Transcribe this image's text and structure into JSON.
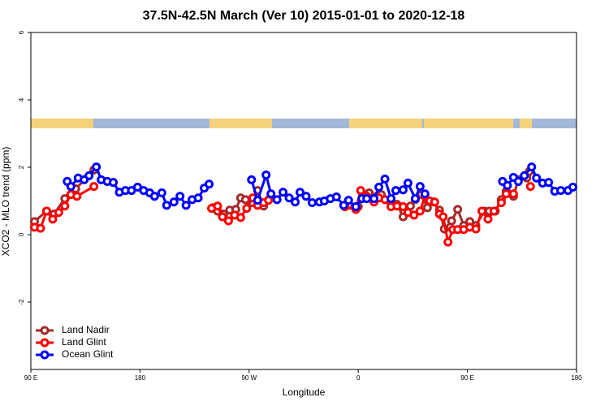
{
  "chart_data": {
    "type": "line",
    "title": "37.5N-42.5N March (Ver 10)   2015-01-01 to 2020-12-18",
    "x_label": "Longitude",
    "y_label": "XCO2 - MLO trend (ppm)",
    "xlim": [
      90,
      540
    ],
    "xticks": [
      {
        "value": 90,
        "label": "90 E"
      },
      {
        "value": 180,
        "label": "180"
      },
      {
        "value": 270,
        "label": "90 W"
      },
      {
        "value": 360,
        "label": "0"
      },
      {
        "value": 450,
        "label": "90 E"
      },
      {
        "value": 540,
        "label": "180"
      }
    ],
    "ylim": [
      -4,
      6
    ],
    "yticks": [
      -2,
      0,
      2,
      4,
      6
    ],
    "grid": false,
    "legend": "bottom-left",
    "series": [
      {
        "name": "Land Nadir",
        "color": "#a52a2a",
        "x": [
          93,
          103,
          109,
          118,
          123,
          127,
          142,
          190,
          240,
          244,
          249,
          254,
          259,
          263,
          267,
          272,
          277,
          282,
          287,
          320,
          352,
          360,
          365,
          369,
          374,
          379,
          387,
          392,
          397,
          403,
          407,
          412,
          417,
          422,
          427,
          431,
          437,
          442,
          447,
          452,
          457,
          464,
          468,
          473,
          478,
          482,
          488,
          492,
          499,
          501
        ],
        "values": [
          0.39,
          0.7,
          0.61,
          1.07,
          1.19,
          1.36,
          1.92,
          null,
          0.8,
          0.7,
          0.61,
          0.73,
          0.75,
          1.09,
          1.04,
          0.95,
          1.31,
          0.85,
          1.07,
          null,
          0.87,
          0.83,
          1.17,
          1.24,
          1.12,
          1.19,
          0.85,
          0.9,
          0.53,
          0.85,
          1.04,
          1.19,
          0.8,
          0.97,
          0.73,
          0.17,
          0.41,
          0.75,
          0.27,
          0.39,
          0.27,
          0.7,
          0.7,
          0.7,
          1.04,
          1.29,
          1.14,
          1.63,
          1.68,
          1.87
        ]
      },
      {
        "name": "Land Glint",
        "color": "#ff0000",
        "x": [
          93,
          98,
          103,
          108,
          113,
          118,
          123,
          128,
          142,
          190,
          239,
          244,
          248,
          253,
          258,
          263,
          268,
          273,
          277,
          282,
          286,
          320,
          349,
          358,
          362,
          367,
          373,
          377,
          382,
          387,
          392,
          397,
          401,
          406,
          411,
          415,
          419,
          423,
          427,
          430,
          434,
          438,
          442,
          447,
          452,
          457,
          462,
          467,
          472,
          478,
          482,
          488,
          495,
          502
        ],
        "values": [
          0.22,
          0.19,
          0.7,
          0.46,
          0.66,
          0.85,
          1.19,
          1.14,
          1.43,
          null,
          0.78,
          0.85,
          0.53,
          0.41,
          0.58,
          0.51,
          0.78,
          1.09,
          0.87,
          0.95,
          1.02,
          null,
          0.83,
          0.75,
          1.31,
          1.14,
          0.97,
          1.09,
          1.04,
          0.83,
          0.85,
          0.83,
          0.66,
          0.58,
          0.7,
          1.14,
          1.0,
          0.97,
          0.61,
          0.53,
          -0.22,
          0.15,
          0.15,
          0.15,
          0.22,
          0.17,
          0.7,
          0.46,
          0.7,
          0.95,
          1.21,
          1.21,
          null,
          1.43
        ]
      },
      {
        "name": "Ocean Glint",
        "color": "#0000ff",
        "x": [
          120,
          123,
          129,
          134,
          138,
          144,
          148,
          153,
          158,
          163,
          168,
          173,
          178,
          183,
          188,
          192,
          198,
          202,
          208,
          213,
          218,
          223,
          228,
          233,
          237,
          260,
          272,
          277,
          284,
          288,
          293,
          298,
          303,
          308,
          312,
          317,
          322,
          328,
          332,
          337,
          342,
          348,
          352,
          358,
          363,
          367,
          373,
          377,
          382,
          387,
          391,
          397,
          401,
          407,
          411,
          415,
          450,
          479,
          483,
          488,
          492,
          497,
          503,
          507,
          512,
          517,
          522,
          527,
          533,
          537
        ],
        "values": [
          1.58,
          1.43,
          1.68,
          1.63,
          1.75,
          2.01,
          1.63,
          1.58,
          1.55,
          1.26,
          1.31,
          1.31,
          1.41,
          1.31,
          1.24,
          1.14,
          1.24,
          0.87,
          0.97,
          1.14,
          0.87,
          1.04,
          1.09,
          1.38,
          1.5,
          null,
          1.63,
          1.02,
          1.77,
          1.21,
          1.04,
          1.26,
          1.09,
          0.97,
          1.26,
          1.14,
          0.95,
          0.97,
          1.0,
          1.07,
          1.12,
          0.87,
          1.02,
          0.83,
          1.07,
          1.07,
          1.07,
          1.41,
          1.65,
          1.07,
          1.31,
          1.33,
          1.53,
          1.07,
          1.43,
          1.21,
          null,
          1.58,
          1.46,
          1.7,
          1.58,
          1.75,
          2.01,
          1.68,
          1.53,
          1.55,
          1.29,
          1.31,
          1.31,
          1.41
        ]
      }
    ]
  }
}
